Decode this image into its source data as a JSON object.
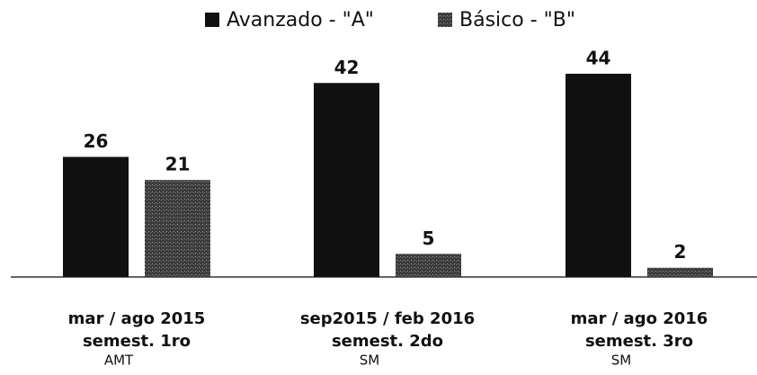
{
  "chart_data": {
    "type": "bar",
    "categories": [
      [
        "mar / ago 2015",
        "semest. 1ro",
        "AMT"
      ],
      [
        "sep2015 / feb 2016",
        "semest. 2do",
        "SM"
      ],
      [
        "mar / ago 2016",
        "semest. 3ro",
        "SM"
      ]
    ],
    "series": [
      {
        "name": "Avanzado - \"A\"",
        "color": "#111111",
        "values": [
          26,
          42,
          44
        ]
      },
      {
        "name": "Básico - \"B\"",
        "color": "#3c3c3c",
        "values": [
          21,
          5,
          2
        ]
      }
    ],
    "legend": "top"
  }
}
